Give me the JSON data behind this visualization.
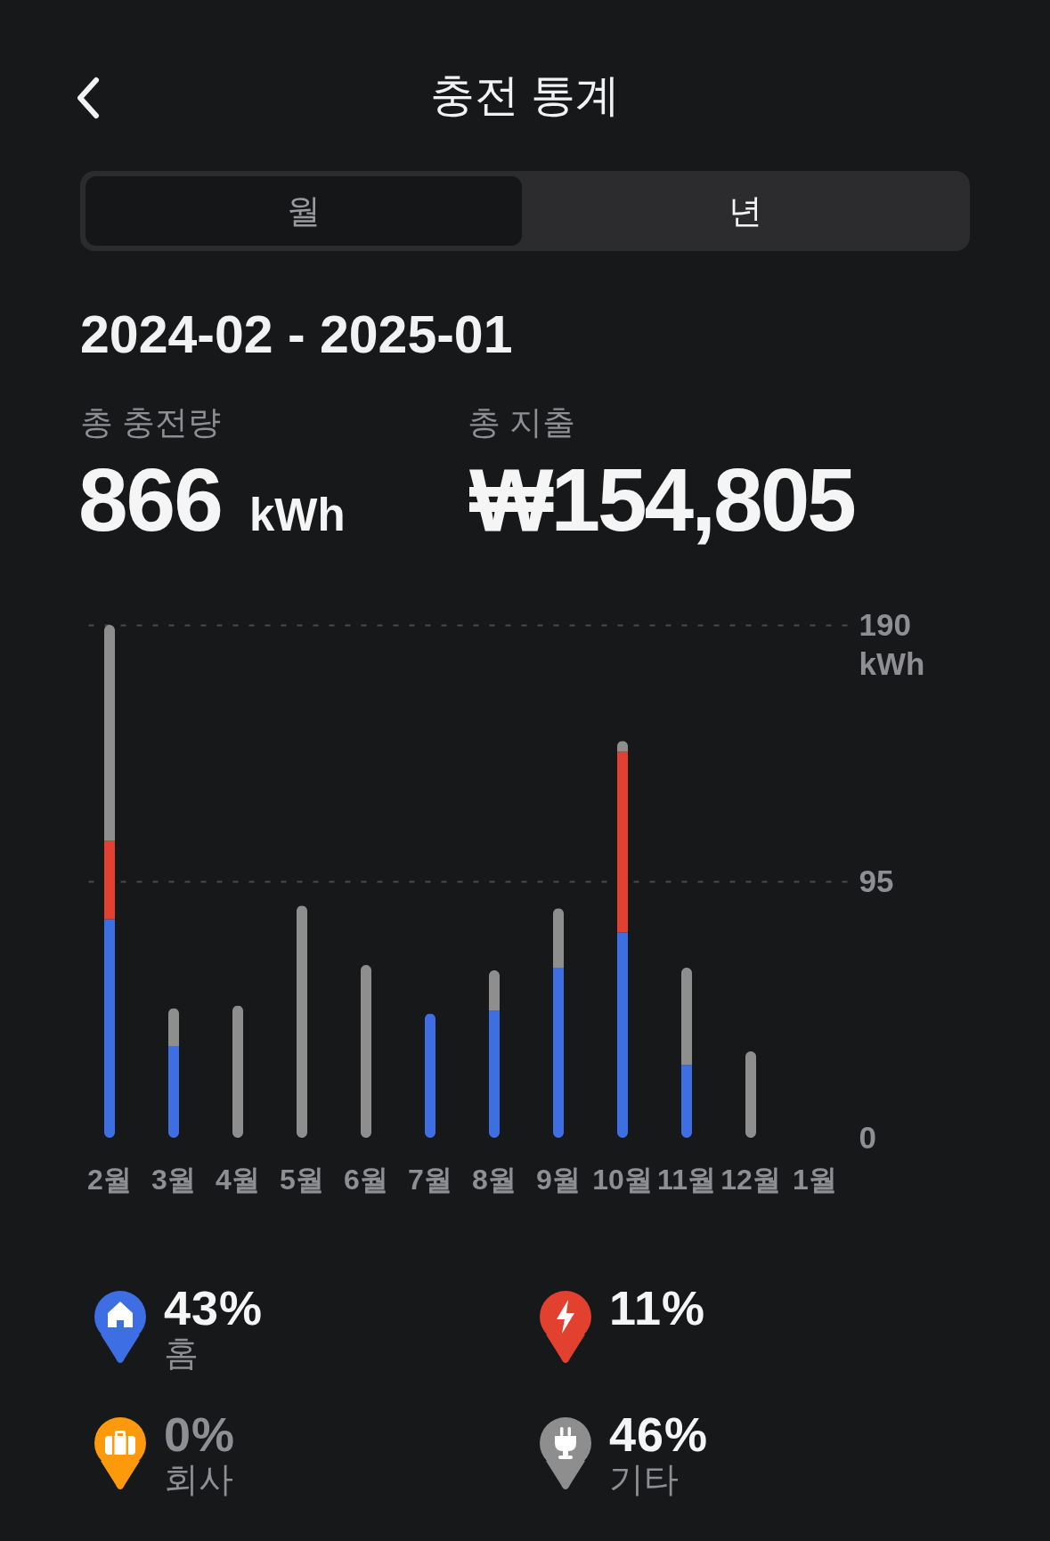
{
  "chart_data": {
    "type": "bar",
    "title": "충전 통계",
    "subtitle": "2024-02 - 2025-01",
    "ylabel": "kWh",
    "categories": [
      "2월",
      "3월",
      "4월",
      "5월",
      "6월",
      "7월",
      "8월",
      "9월",
      "10월",
      "11월",
      "12월",
      "1월"
    ],
    "series": [
      {
        "name": "홈",
        "color": "#3e6ee3",
        "values": [
          81,
          34,
          null,
          null,
          null,
          46,
          47,
          63,
          76,
          27,
          null,
          null
        ]
      },
      {
        "color": "#e2412f",
        "values": [
          29,
          null,
          null,
          null,
          null,
          null,
          null,
          null,
          67,
          null,
          null,
          null
        ]
      },
      {
        "name": "회사",
        "color": "#fd9a0c",
        "values": [
          null,
          null,
          null,
          null,
          null,
          null,
          null,
          null,
          null,
          null,
          null,
          null
        ]
      },
      {
        "name": "기타",
        "color": "#8e8e8e",
        "values": [
          80,
          14,
          49,
          86,
          64,
          null,
          15,
          22,
          4,
          36,
          32,
          null
        ]
      }
    ],
    "stacked": true,
    "ylim": [
      0,
      190
    ],
    "yticks": [
      0,
      95,
      190
    ],
    "grid": "y",
    "legend": "bottom",
    "annotations": [
      "월",
      "년",
      "총 충전량",
      "866",
      "kWh",
      "총 지출",
      "₩154,805",
      "43%",
      "11%",
      "0%",
      "46%"
    ]
  }
}
